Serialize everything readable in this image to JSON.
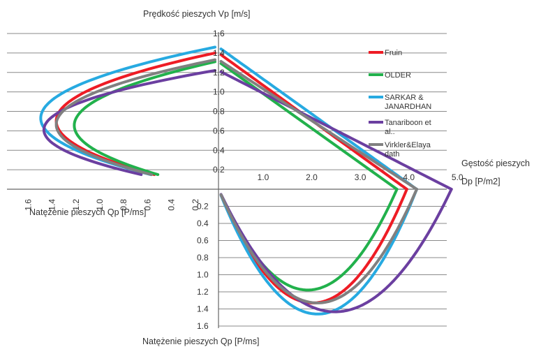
{
  "chart_data": {
    "type": "line",
    "titles": {
      "top": "Prędkość pieszych Vp [m/s]",
      "left": "Natężenie pieszych Qp [P/ms]",
      "right_line1": "Gęstość pieszych",
      "right_line2": "Dp [P/m2]",
      "bottom": "Natężenie pieszych Qp [P/ms]"
    },
    "speed_ticks": [
      "0.2",
      "0.4",
      "0.6",
      "0.8",
      "1.0",
      "1.2",
      "1.4",
      "1.6"
    ],
    "density_ticks": [
      "1.0",
      "2.0",
      "3.0",
      "4.0",
      "5.0"
    ],
    "flow_ticks_left": [
      "1.6",
      "1.4",
      "1.2",
      "1.0",
      "0.8",
      "0.6",
      "0.4",
      "0.2"
    ],
    "flow_ticks_bottom": [
      "0.2",
      "0.4",
      "0.6",
      "0.8",
      "1.0",
      "1.2",
      "1.4",
      "1.6"
    ],
    "series": [
      {
        "name": "Fruin",
        "color": "#ee1c25",
        "vf": 1.4,
        "kj": 3.8
      },
      {
        "name": "OLDER",
        "color": "#22b14c",
        "vf": 1.31,
        "kj": 3.6
      },
      {
        "name": "SARKAR & JANARDHAN",
        "color": "#27aae1",
        "vf": 1.46,
        "kj": 4.0
      },
      {
        "name": "Tanariboon et al..",
        "color": "#6b3fa0",
        "vf": 1.22,
        "kj": 4.7
      },
      {
        "name": "Virkler&Elayadath",
        "color": "#808080",
        "vf": 1.33,
        "kj": 4.0
      }
    ],
    "legend": {
      "position": "right",
      "lines": [
        [
          "Fruin"
        ],
        [
          "OLDER"
        ],
        [
          "SARKAR &",
          "JANARDHAN"
        ],
        [
          "Tanariboon et",
          "al.."
        ],
        [
          "Virkler&Elaya",
          "dath"
        ]
      ]
    }
  }
}
